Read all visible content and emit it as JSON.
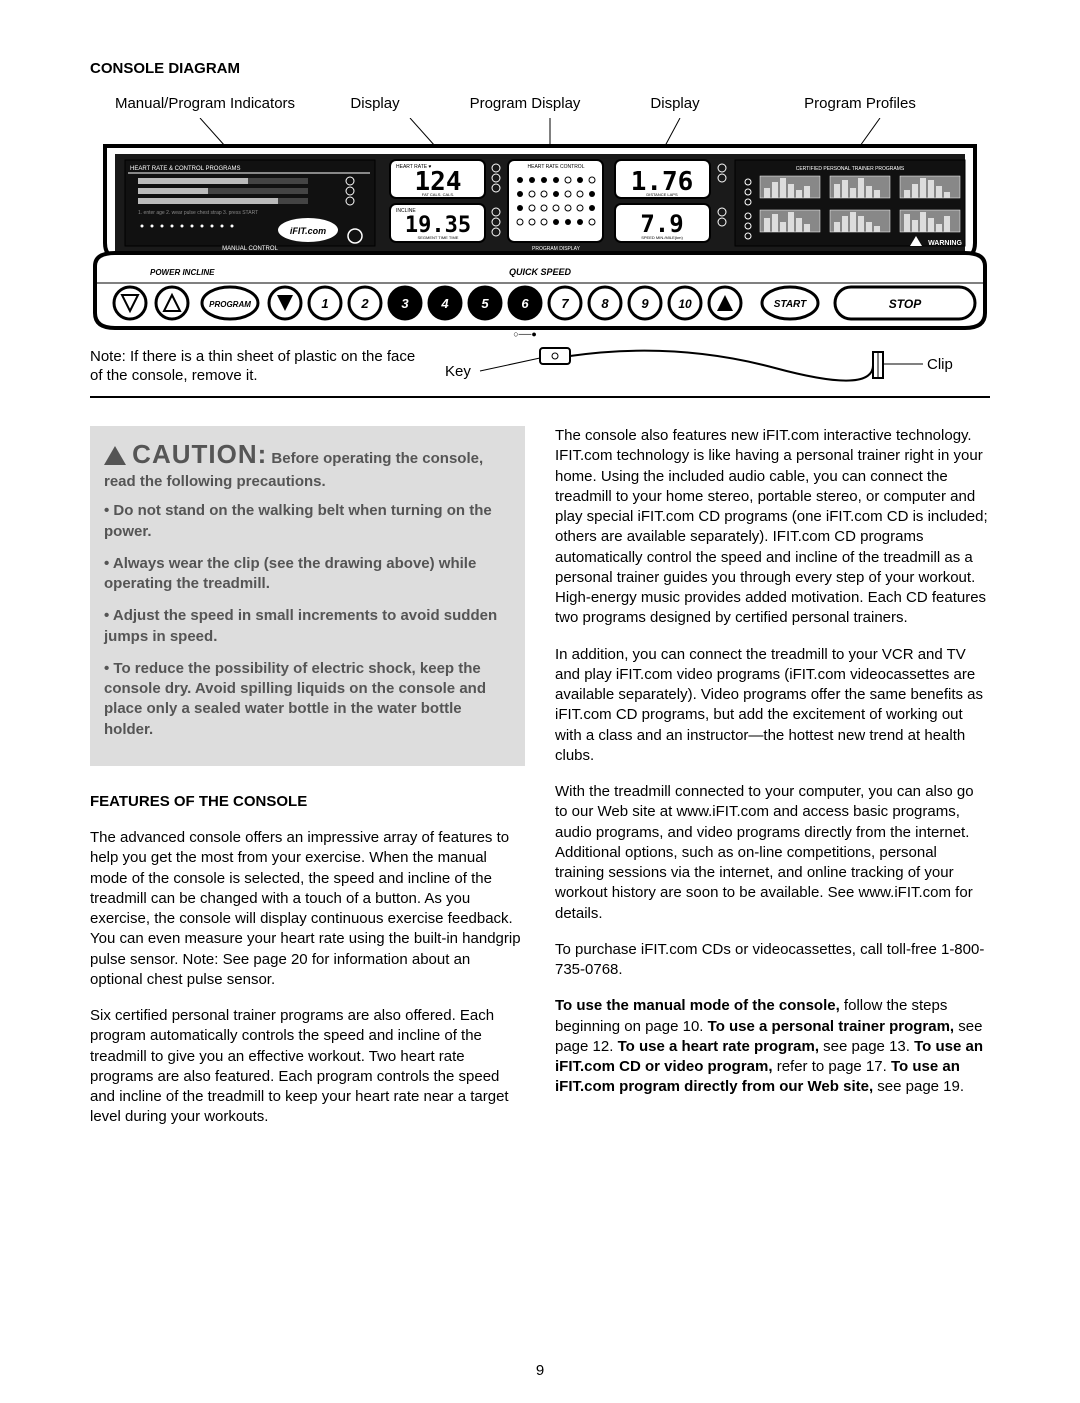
{
  "section_title": "CONSOLE DIAGRAM",
  "diagram": {
    "labels": {
      "l1": "Manual/Program Indicators",
      "l2": "Display",
      "l3": "Program Display",
      "l4": "Display",
      "l5": "Program Profiles"
    },
    "heart_rate_label": "HEART RATE & CONTROL PROGRAMS",
    "hr_display": "124",
    "hr_sub": "FAT CALS.   CALS.",
    "incline_label": "INCLINE",
    "incline_display": "19.35",
    "incline_sub": "SEGMENT TIME   TIME",
    "program_display_label": "PROGRAM DISPLAY\n1/4 MILE / 400 M TRACK",
    "heart_rate_control": "HEART RATE CONTROL",
    "dist_display": "1.76",
    "dist_sub": "DISTANCE   LAPS",
    "speed_display": "7.9",
    "speed_sub": "SPEED   MIN./MILE(km)",
    "profiles_label": "CERTIFIED PERSONAL TRAINER PROGRAMS",
    "warning": "WARNING",
    "ifit": "iFIT.com",
    "manual_control": "MANUAL CONTROL",
    "power_incline": "POWER INCLINE",
    "quick_speed": "QUICK SPEED",
    "buttons": [
      "PROGRAM",
      "1",
      "2",
      "3",
      "4",
      "5",
      "6",
      "7",
      "8",
      "9",
      "10",
      "START",
      "STOP"
    ],
    "note": "Note: If there is a thin sheet of plastic on the face of the console, remove it.",
    "key": "Key",
    "clip": "Clip",
    "colors": {
      "outline": "#000000",
      "panel_bg": "#ffffff",
      "inner_fill": "#1a1a1a",
      "lcd_bg": "#222",
      "lcd_text": "#fff"
    }
  },
  "caution": {
    "heading_big": "CAUTION:",
    "heading_rest": " Before operating the console, read the following precautions.",
    "items": [
      "Do not stand on the walking belt when turning on the power.",
      "Always wear the clip (see the drawing above) while operating the treadmill.",
      "Adjust the speed in small increments to avoid sudden jumps in speed.",
      "To reduce the possibility of electric shock, keep the console dry. Avoid spilling liquids on the console and place only a sealed water bottle in the water bottle holder."
    ]
  },
  "features_title": "FEATURES OF THE CONSOLE",
  "left_paras": [
    "The advanced console offers an impressive array of features to help you get the most from your exercise. When the manual mode of the console is selected, the speed and incline of the treadmill can be changed with a touch of a button. As you exercise, the console will display continuous exercise feedback. You can even measure your heart rate using the built-in handgrip pulse sensor. Note: See page 20 for information about an optional chest pulse sensor.",
    "Six certified personal trainer programs are also offered. Each program automatically controls the speed and incline of the treadmill to give you an effective workout. Two heart rate programs are also featured. Each program controls the speed and incline of the treadmill to keep your heart rate near a target level during your workouts."
  ],
  "right_paras": [
    "The console also features new iFIT.com interactive technology. IFIT.com technology is like having a personal trainer right in your home. Using the included audio cable, you can connect the treadmill to your home stereo, portable stereo, or computer and play special iFIT.com CD programs (one iFIT.com CD is included; others are available separately). IFIT.com CD programs automatically control the speed and incline of the treadmill as a personal trainer guides you through every step of your workout. High-energy music provides added motivation. Each CD features two programs designed by certified personal trainers.",
    "In addition, you can connect the treadmill to your VCR and TV and play iFIT.com video programs (iFIT.com videocassettes are available separately). Video programs offer the same benefits as iFIT.com CD programs, but add the excitement of working out with a class and an instructor—the hottest new trend at health clubs.",
    "With the treadmill connected to your computer, you can also go to our Web site at www.iFIT.com and access basic programs, audio programs, and video programs directly from the internet. Additional options, such as on-line competitions, personal training sessions via the internet, and online tracking of your workout history are soon to be available. See www.iFIT.com for details.",
    "To purchase iFIT.com CDs or videocassettes, call toll-free 1-800-735-0768."
  ],
  "right_last": {
    "parts": [
      {
        "b": true,
        "t": "To use the manual mode of the console,"
      },
      {
        "b": false,
        "t": " follow the steps beginning on page 10. "
      },
      {
        "b": true,
        "t": "To use a personal trainer program,"
      },
      {
        "b": false,
        "t": " see page 12. "
      },
      {
        "b": true,
        "t": "To use a heart rate program,"
      },
      {
        "b": false,
        "t": " see page 13. "
      },
      {
        "b": true,
        "t": "To use an iFIT.com CD or video program,"
      },
      {
        "b": false,
        "t": " refer to page 17. "
      },
      {
        "b": true,
        "t": "To use an iFIT.com program directly from our Web site,"
      },
      {
        "b": false,
        "t": " see page 19."
      }
    ]
  },
  "page_number": "9"
}
